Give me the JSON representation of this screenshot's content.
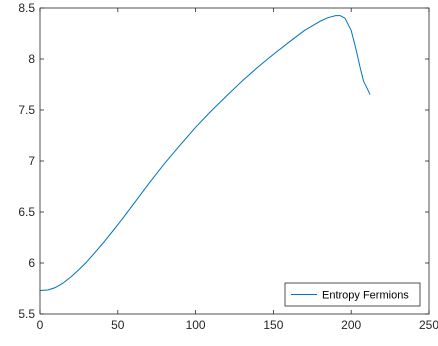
{
  "chart_data": {
    "type": "line",
    "xlim": [
      0,
      250
    ],
    "ylim": [
      5.5,
      8.5
    ],
    "x_ticks": [
      "0",
      "50",
      "100",
      "150",
      "200",
      "250"
    ],
    "y_ticks": [
      "5.5",
      "6",
      "6.5",
      "7",
      "7.5",
      "8",
      "8.5"
    ],
    "grid": false,
    "legend_location": "bottom-right",
    "series": [
      {
        "name": "Entropy Fermions",
        "color": "#0072BD",
        "x": [
          0,
          5,
          10,
          15,
          20,
          25,
          30,
          40,
          50,
          60,
          70,
          80,
          90,
          100,
          110,
          120,
          130,
          140,
          150,
          160,
          170,
          180,
          185,
          190,
          193,
          196,
          200,
          203,
          206,
          208,
          210,
          212
        ],
        "y": [
          5.73,
          5.735,
          5.76,
          5.805,
          5.865,
          5.935,
          6.01,
          6.185,
          6.375,
          6.575,
          6.78,
          6.975,
          7.155,
          7.33,
          7.49,
          7.64,
          7.785,
          7.92,
          8.045,
          8.165,
          8.28,
          8.37,
          8.405,
          8.425,
          8.425,
          8.4,
          8.28,
          8.1,
          7.9,
          7.78,
          7.72,
          7.655
        ]
      }
    ]
  }
}
